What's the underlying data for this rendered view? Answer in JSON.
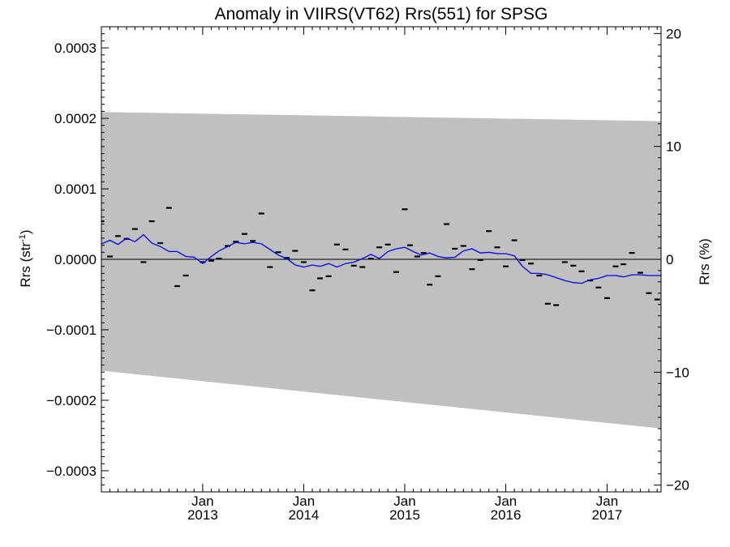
{
  "chart_data": {
    "type": "scatter",
    "title": "Anomaly in VIIRS(VT62) Rrs(551) for SPSG",
    "ylabel_left": "Rrs (str",
    "ylabel_left_sup": "-1",
    "ylabel_left_end": ")",
    "ylabel_right": "Rrs (%)",
    "xlim": [
      "2012-01-01",
      "2017-07-15"
    ],
    "ylim_left": [
      -0.00033,
      0.00033
    ],
    "ylim_right": [
      -20.6,
      20.6
    ],
    "x_ticks": [
      {
        "date": "2013-01-01",
        "month": "Jan",
        "year": "2013"
      },
      {
        "date": "2014-01-01",
        "month": "Jan",
        "year": "2014"
      },
      {
        "date": "2015-01-01",
        "month": "Jan",
        "year": "2015"
      },
      {
        "date": "2016-01-01",
        "month": "Jan",
        "year": "2016"
      },
      {
        "date": "2017-01-01",
        "month": "Jan",
        "year": "2017"
      }
    ],
    "y_ticks_left": [
      {
        "value": 0.0003,
        "label": "0.0003"
      },
      {
        "value": 0.0002,
        "label": "0.0002"
      },
      {
        "value": 0.0001,
        "label": "0.0001"
      },
      {
        "value": 0.0,
        "label": "0.0000"
      },
      {
        "value": -0.0001,
        "label": "−0.0001"
      },
      {
        "value": -0.0002,
        "label": "−0.0002"
      },
      {
        "value": -0.0003,
        "label": "−0.0003"
      }
    ],
    "y_ticks_right": [
      {
        "value": 20,
        "label": "20"
      },
      {
        "value": 10,
        "label": "10"
      },
      {
        "value": 0,
        "label": "0"
      },
      {
        "value": -10,
        "label": "−10"
      },
      {
        "value": -20,
        "label": "−20"
      }
    ],
    "band": {
      "color": "#c0c0c0",
      "start": {
        "date": "2012-01-01",
        "upper": 0.000209,
        "lower": -0.000158
      },
      "end": {
        "date": "2017-07-15",
        "upper": 0.000196,
        "lower": -0.00024
      }
    },
    "zero_line": true,
    "monthly_anomalies": {
      "color": "#000000",
      "points": [
        {
          "date": "2012-01-01",
          "y": 5.4e-05
        },
        {
          "date": "2012-02-01",
          "y": 4e-06
        },
        {
          "date": "2012-03-01",
          "y": 3.3e-05
        },
        {
          "date": "2012-04-01",
          "y": 2.9e-05
        },
        {
          "date": "2012-05-01",
          "y": 4.3e-05
        },
        {
          "date": "2012-06-01",
          "y": -4e-06
        },
        {
          "date": "2012-07-01",
          "y": 5.4e-05
        },
        {
          "date": "2012-08-01",
          "y": 2.3e-05
        },
        {
          "date": "2012-09-01",
          "y": 7.3e-05
        },
        {
          "date": "2012-10-01",
          "y": -3.8e-05
        },
        {
          "date": "2012-11-01",
          "y": -2.3e-05
        },
        {
          "date": "2013-01-01",
          "y": -4e-06
        },
        {
          "date": "2013-02-01",
          "y": -2e-06
        },
        {
          "date": "2013-03-01",
          "y": 1e-06
        },
        {
          "date": "2013-04-01",
          "y": 1.9e-05
        },
        {
          "date": "2013-05-01",
          "y": 2.5e-05
        },
        {
          "date": "2013-06-01",
          "y": 3.6e-05
        },
        {
          "date": "2013-07-01",
          "y": 2.6e-05
        },
        {
          "date": "2013-08-01",
          "y": 6.5e-05
        },
        {
          "date": "2013-09-01",
          "y": -1.1e-05
        },
        {
          "date": "2013-10-01",
          "y": 1e-05
        },
        {
          "date": "2013-11-01",
          "y": 2e-06
        },
        {
          "date": "2013-12-01",
          "y": 1.2e-05
        },
        {
          "date": "2014-01-01",
          "y": -4e-06
        },
        {
          "date": "2014-02-01",
          "y": -4.4e-05
        },
        {
          "date": "2014-03-01",
          "y": -2.7e-05
        },
        {
          "date": "2014-04-01",
          "y": -2.4e-05
        },
        {
          "date": "2014-05-01",
          "y": 2.1e-05
        },
        {
          "date": "2014-06-01",
          "y": 1.4e-05
        },
        {
          "date": "2014-07-01",
          "y": -9e-06
        },
        {
          "date": "2014-08-01",
          "y": -1.1e-05
        },
        {
          "date": "2014-09-01",
          "y": 1e-06
        },
        {
          "date": "2014-10-01",
          "y": 1.7e-05
        },
        {
          "date": "2014-11-01",
          "y": 2.1e-05
        },
        {
          "date": "2014-12-01",
          "y": -1.8e-05
        },
        {
          "date": "2015-01-01",
          "y": 7.1e-05
        },
        {
          "date": "2015-01-20",
          "y": 2e-05
        },
        {
          "date": "2015-02-15",
          "y": 4e-06
        },
        {
          "date": "2015-03-10",
          "y": 9e-06
        },
        {
          "date": "2015-04-01",
          "y": -3.6e-05
        },
        {
          "date": "2015-05-01",
          "y": -2.4e-05
        },
        {
          "date": "2015-06-01",
          "y": 5e-05
        },
        {
          "date": "2015-07-01",
          "y": 1.5e-05
        },
        {
          "date": "2015-08-01",
          "y": 1.9e-05
        },
        {
          "date": "2015-09-01",
          "y": -1.4e-05
        },
        {
          "date": "2015-10-01",
          "y": -1e-06
        },
        {
          "date": "2015-11-01",
          "y": 4e-05
        },
        {
          "date": "2015-12-01",
          "y": 1.7e-05
        },
        {
          "date": "2016-01-01",
          "y": -1e-05
        },
        {
          "date": "2016-02-01",
          "y": 2.7e-05
        },
        {
          "date": "2016-03-01",
          "y": -1e-06
        },
        {
          "date": "2016-04-01",
          "y": -6e-06
        },
        {
          "date": "2016-05-01",
          "y": -2.3e-05
        },
        {
          "date": "2016-06-01",
          "y": -6.3e-05
        },
        {
          "date": "2016-07-01",
          "y": -6.5e-05
        },
        {
          "date": "2016-08-01",
          "y": -4e-06
        },
        {
          "date": "2016-09-01",
          "y": -9e-06
        },
        {
          "date": "2016-10-01",
          "y": -1.7e-05
        },
        {
          "date": "2016-11-01",
          "y": -3e-05
        },
        {
          "date": "2016-12-01",
          "y": -4e-05
        },
        {
          "date": "2017-01-01",
          "y": -5.5e-05
        },
        {
          "date": "2017-02-01",
          "y": -1e-05
        },
        {
          "date": "2017-03-01",
          "y": -7e-06
        },
        {
          "date": "2017-04-01",
          "y": 9e-06
        },
        {
          "date": "2017-05-01",
          "y": -1.9e-05
        },
        {
          "date": "2017-06-01",
          "y": -4.8e-05
        },
        {
          "date": "2017-07-01",
          "y": -5.7e-05
        }
      ]
    },
    "running_mean": {
      "color": "#0000ff",
      "points": [
        {
          "date": "2012-01-01",
          "y": 2.2e-05
        },
        {
          "date": "2012-02-01",
          "y": 2.7e-05
        },
        {
          "date": "2012-03-01",
          "y": 2.1e-05
        },
        {
          "date": "2012-04-01",
          "y": 3e-05
        },
        {
          "date": "2012-05-01",
          "y": 2.5e-05
        },
        {
          "date": "2012-06-01",
          "y": 3.5e-05
        },
        {
          "date": "2012-07-01",
          "y": 2.3e-05
        },
        {
          "date": "2012-08-01",
          "y": 1.8e-05
        },
        {
          "date": "2012-09-01",
          "y": 1.1e-05
        },
        {
          "date": "2012-10-01",
          "y": 1.1e-05
        },
        {
          "date": "2012-11-01",
          "y": 4e-06
        },
        {
          "date": "2012-12-01",
          "y": 3e-06
        },
        {
          "date": "2013-01-01",
          "y": -6e-06
        },
        {
          "date": "2013-02-01",
          "y": 4e-06
        },
        {
          "date": "2013-03-01",
          "y": 1.2e-05
        },
        {
          "date": "2013-04-01",
          "y": 1.8e-05
        },
        {
          "date": "2013-05-01",
          "y": 2.4e-05
        },
        {
          "date": "2013-06-01",
          "y": 2.2e-05
        },
        {
          "date": "2013-07-01",
          "y": 2.4e-05
        },
        {
          "date": "2013-08-01",
          "y": 2.2e-05
        },
        {
          "date": "2013-09-01",
          "y": 1.4e-05
        },
        {
          "date": "2013-10-01",
          "y": 6e-06
        },
        {
          "date": "2013-11-01",
          "y": 1e-06
        },
        {
          "date": "2013-12-01",
          "y": -8e-06
        },
        {
          "date": "2014-01-01",
          "y": -1.1e-05
        },
        {
          "date": "2014-02-01",
          "y": -8e-06
        },
        {
          "date": "2014-03-01",
          "y": -1e-05
        },
        {
          "date": "2014-04-01",
          "y": -6e-06
        },
        {
          "date": "2014-05-01",
          "y": -1.1e-05
        },
        {
          "date": "2014-06-01",
          "y": -6e-06
        },
        {
          "date": "2014-07-01",
          "y": -4e-06
        },
        {
          "date": "2014-08-01",
          "y": 1e-06
        },
        {
          "date": "2014-09-01",
          "y": 7e-06
        },
        {
          "date": "2014-10-01",
          "y": 1e-06
        },
        {
          "date": "2014-11-01",
          "y": 1.1e-05
        },
        {
          "date": "2014-12-01",
          "y": 1.5e-05
        },
        {
          "date": "2015-01-01",
          "y": 1.7e-05
        },
        {
          "date": "2015-02-01",
          "y": 1.1e-05
        },
        {
          "date": "2015-03-01",
          "y": 6e-06
        },
        {
          "date": "2015-04-01",
          "y": 9e-06
        },
        {
          "date": "2015-05-01",
          "y": 4e-06
        },
        {
          "date": "2015-06-01",
          "y": 2e-06
        },
        {
          "date": "2015-07-01",
          "y": 3e-06
        },
        {
          "date": "2015-08-01",
          "y": 1.2e-05
        },
        {
          "date": "2015-09-01",
          "y": 1.5e-05
        },
        {
          "date": "2015-10-01",
          "y": 9e-06
        },
        {
          "date": "2015-11-01",
          "y": 1e-05
        },
        {
          "date": "2015-12-01",
          "y": 8e-06
        },
        {
          "date": "2016-01-01",
          "y": 8e-06
        },
        {
          "date": "2016-02-01",
          "y": 5e-06
        },
        {
          "date": "2016-03-01",
          "y": -1e-05
        },
        {
          "date": "2016-04-01",
          "y": -2e-05
        },
        {
          "date": "2016-05-01",
          "y": -2e-05
        },
        {
          "date": "2016-06-01",
          "y": -2.2e-05
        },
        {
          "date": "2016-07-01",
          "y": -2.6e-05
        },
        {
          "date": "2016-08-01",
          "y": -3e-05
        },
        {
          "date": "2016-09-01",
          "y": -3.3e-05
        },
        {
          "date": "2016-10-01",
          "y": -3.4e-05
        },
        {
          "date": "2016-11-01",
          "y": -2.9e-05
        },
        {
          "date": "2016-12-01",
          "y": -2.7e-05
        },
        {
          "date": "2017-01-01",
          "y": -2.3e-05
        },
        {
          "date": "2017-02-01",
          "y": -2.3e-05
        },
        {
          "date": "2017-03-01",
          "y": -2.5e-05
        },
        {
          "date": "2017-04-01",
          "y": -2.2e-05
        },
        {
          "date": "2017-05-01",
          "y": -2.2e-05
        },
        {
          "date": "2017-06-01",
          "y": -2.3e-05
        },
        {
          "date": "2017-07-15",
          "y": -2.3e-05
        }
      ]
    }
  }
}
